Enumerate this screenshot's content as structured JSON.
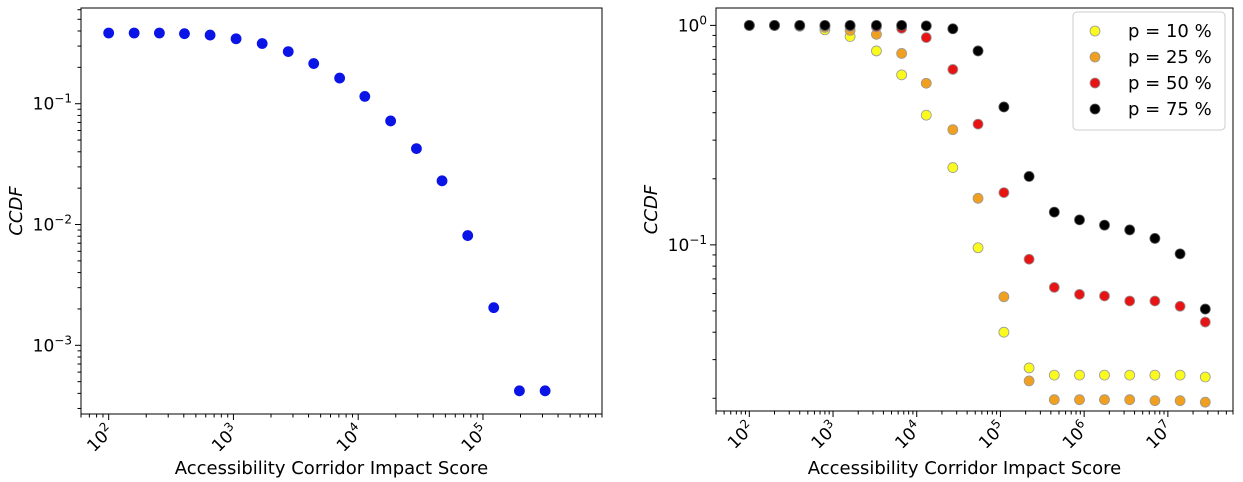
{
  "chart_data": [
    {
      "type": "scatter",
      "xlabel": "Accessibility Corridor Impact Score",
      "ylabel": "CCDF",
      "xscale": "log",
      "yscale": "log",
      "xlim": [
        60,
        900000
      ],
      "ylim": [
        0.00027,
        0.62
      ],
      "xticks": [
        {
          "value": 100,
          "base": "10",
          "exp": "2"
        },
        {
          "value": 1000,
          "base": "10",
          "exp": "3"
        },
        {
          "value": 10000,
          "base": "10",
          "exp": "4"
        },
        {
          "value": 100000,
          "base": "10",
          "exp": "5"
        }
      ],
      "yticks": [
        {
          "value": 0.1,
          "base": "10",
          "exp": "−1"
        },
        {
          "value": 0.01,
          "base": "10",
          "exp": "−2"
        },
        {
          "value": 0.001,
          "base": "10",
          "exp": "−3"
        }
      ],
      "series": [
        {
          "color": "#0a14e6",
          "edge": "#0a14e6",
          "x": [
            100,
            160,
            255,
            405,
            650,
            1050,
            1700,
            2750,
            4400,
            7100,
            11300,
            18200,
            29300,
            47000,
            75500,
            122000,
            196000,
            315000
          ],
          "y": [
            0.385,
            0.385,
            0.385,
            0.38,
            0.37,
            0.345,
            0.315,
            0.27,
            0.215,
            0.163,
            0.115,
            0.072,
            0.0425,
            0.023,
            0.0081,
            0.00205,
            0.00042,
            0.00042
          ]
        }
      ]
    },
    {
      "type": "scatter",
      "xlabel": "Accessibility Corridor Impact Score",
      "ylabel": "CCDF",
      "xscale": "log",
      "yscale": "log",
      "xlim": [
        40,
        60000000
      ],
      "ylim": [
        0.0175,
        1.2
      ],
      "xticks": [
        {
          "value": 100,
          "base": "10",
          "exp": "2"
        },
        {
          "value": 1000,
          "base": "10",
          "exp": "3"
        },
        {
          "value": 10000,
          "base": "10",
          "exp": "4"
        },
        {
          "value": 100000,
          "base": "10",
          "exp": "5"
        },
        {
          "value": 1000000,
          "base": "10",
          "exp": "6"
        },
        {
          "value": 10000000,
          "base": "10",
          "exp": "7"
        }
      ],
      "yticks": [
        {
          "value": 1,
          "base": "10",
          "exp": "0"
        },
        {
          "value": 0.1,
          "base": "10",
          "exp": "−1"
        }
      ],
      "legend": {
        "position": "upper-right"
      },
      "series": [
        {
          "name": "p = 10 %",
          "color": "#fafa1e",
          "edge": "#9a9a9a",
          "x": [
            100,
            200,
            400,
            800,
            1600,
            3300,
            6600,
            13000,
            27000,
            54000,
            110000,
            220000,
            440000,
            880000,
            1750000,
            3500000,
            7000000,
            14000000,
            28000000
          ],
          "y": [
            1.0,
            1.0,
            0.99,
            0.955,
            0.89,
            0.765,
            0.595,
            0.39,
            0.225,
            0.097,
            0.04,
            0.0275,
            0.0255,
            0.0255,
            0.0255,
            0.0255,
            0.0255,
            0.0255,
            0.025
          ]
        },
        {
          "name": "p = 25 %",
          "color": "#f0a01e",
          "edge": "#9a9a9a",
          "x": [
            100,
            200,
            400,
            800,
            1600,
            3300,
            6600,
            13000,
            27000,
            54000,
            110000,
            220000,
            440000,
            880000,
            1750000,
            3500000,
            7000000,
            14000000,
            28000000
          ],
          "y": [
            1.0,
            1.0,
            0.995,
            0.98,
            0.95,
            0.91,
            0.745,
            0.545,
            0.335,
            0.163,
            0.058,
            0.024,
            0.0197,
            0.0197,
            0.0197,
            0.0197,
            0.0195,
            0.0195,
            0.0192
          ]
        },
        {
          "name": "p = 50 %",
          "color": "#e61414",
          "edge": "#9a9a9a",
          "x": [
            100,
            200,
            400,
            800,
            1600,
            3300,
            6600,
            13000,
            27000,
            54000,
            110000,
            220000,
            440000,
            880000,
            1750000,
            3500000,
            7000000,
            14000000,
            28000000
          ],
          "y": [
            1.0,
            1.0,
            1.0,
            0.995,
            0.99,
            0.985,
            0.97,
            0.88,
            0.63,
            0.355,
            0.173,
            0.086,
            0.064,
            0.0595,
            0.0585,
            0.0555,
            0.0555,
            0.0525,
            0.0445
          ]
        },
        {
          "name": "p = 75 %",
          "color": "#000000",
          "edge": "#555555",
          "x": [
            100,
            200,
            400,
            800,
            1600,
            3300,
            6600,
            13000,
            27000,
            54000,
            110000,
            220000,
            440000,
            880000,
            1750000,
            3500000,
            7000000,
            14000000,
            28000000
          ],
          "y": [
            1.0,
            1.0,
            1.0,
            1.0,
            1.0,
            1.0,
            1.0,
            0.995,
            0.965,
            0.765,
            0.425,
            0.205,
            0.141,
            0.13,
            0.123,
            0.117,
            0.107,
            0.091,
            0.051
          ]
        }
      ]
    }
  ]
}
